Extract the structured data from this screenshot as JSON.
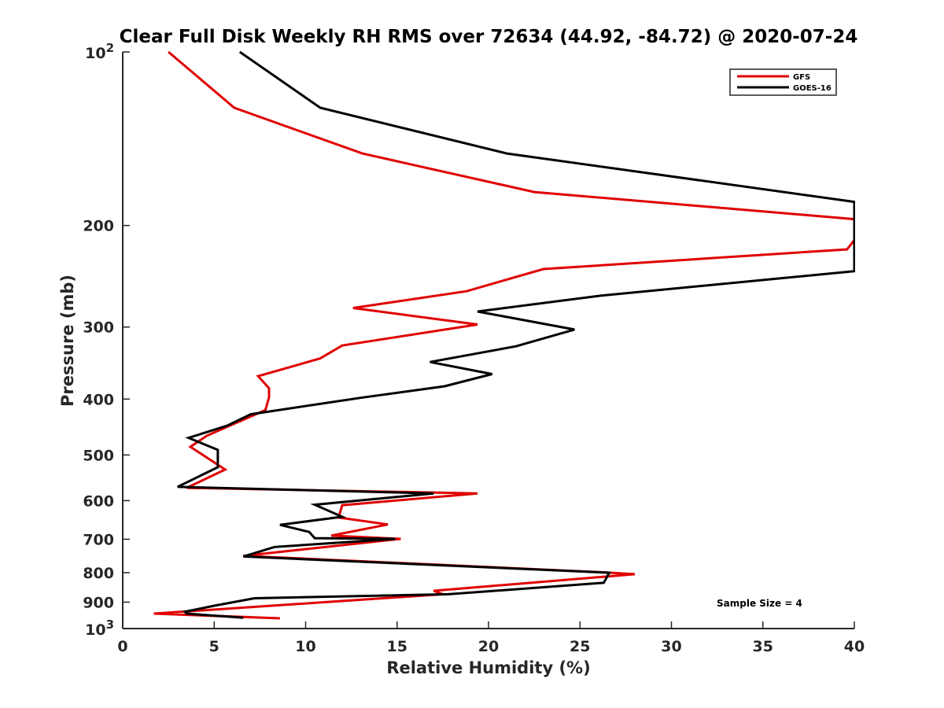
{
  "chart_data": {
    "type": "line",
    "title": "Clear Full Disk Weekly RH RMS over 72634 (44.92, -84.72) @ 2020-07-24",
    "xlabel": "Relative Humidity (%)",
    "ylabel": "Pressure (mb)",
    "xlim": [
      0,
      40
    ],
    "ylim": [
      100,
      1000
    ],
    "yscale": "log",
    "yreversed": false,
    "xticks": [
      {
        "value": 0,
        "label": "0"
      },
      {
        "value": 5,
        "label": "5"
      },
      {
        "value": 10,
        "label": "10"
      },
      {
        "value": 15,
        "label": "15"
      },
      {
        "value": 20,
        "label": "20"
      },
      {
        "value": 25,
        "label": "25"
      },
      {
        "value": 30,
        "label": "30"
      },
      {
        "value": 35,
        "label": "35"
      },
      {
        "value": 40,
        "label": "40"
      }
    ],
    "yticks": [
      {
        "value": 100,
        "base": "10",
        "exp": "2"
      },
      {
        "value": 200,
        "label": "200"
      },
      {
        "value": 300,
        "label": "300"
      },
      {
        "value": 400,
        "label": "400"
      },
      {
        "value": 500,
        "label": "500"
      },
      {
        "value": 600,
        "label": "600"
      },
      {
        "value": 700,
        "label": "700"
      },
      {
        "value": 800,
        "label": "800"
      },
      {
        "value": 900,
        "label": "900"
      },
      {
        "value": 1000,
        "base": "10",
        "exp": "3"
      }
    ],
    "legend": {
      "position": "top-right"
    },
    "annotation": "Sample Size = 4",
    "series": [
      {
        "name": "GFS",
        "color": "#e00000",
        "points": [
          [
            2.5,
            100
          ],
          [
            6.1,
            125
          ],
          [
            13.1,
            150
          ],
          [
            22.5,
            175
          ],
          [
            40.0,
            195
          ],
          [
            40.0,
            212
          ],
          [
            39.6,
            220
          ],
          [
            23.0,
            238
          ],
          [
            18.8,
            260
          ],
          [
            12.6,
            278
          ],
          [
            19.4,
            297
          ],
          [
            12.0,
            323
          ],
          [
            10.8,
            340
          ],
          [
            7.4,
            365
          ],
          [
            8.0,
            383
          ],
          [
            8.0,
            397
          ],
          [
            7.8,
            418
          ],
          [
            4.6,
            463
          ],
          [
            3.7,
            484
          ],
          [
            5.6,
            530
          ],
          [
            3.5,
            570
          ],
          [
            19.4,
            583
          ],
          [
            12.0,
            611
          ],
          [
            11.8,
            642
          ],
          [
            14.5,
            660
          ],
          [
            11.4,
            690
          ],
          [
            15.2,
            699
          ],
          [
            6.6,
            748
          ],
          [
            26.0,
            798
          ],
          [
            28.0,
            805
          ],
          [
            17.0,
            860
          ],
          [
            17.5,
            872
          ],
          [
            1.7,
            942
          ],
          [
            8.6,
            960
          ]
        ]
      },
      {
        "name": "GOES-16",
        "color": "#000000",
        "points": [
          [
            6.4,
            100
          ],
          [
            10.8,
            125
          ],
          [
            21.0,
            150
          ],
          [
            40.0,
            182
          ],
          [
            40.0,
            240
          ],
          [
            26.0,
            265
          ],
          [
            19.4,
            282
          ],
          [
            24.7,
            303
          ],
          [
            21.5,
            324
          ],
          [
            16.8,
            345
          ],
          [
            20.2,
            362
          ],
          [
            17.6,
            380
          ],
          [
            13.0,
            398
          ],
          [
            7.0,
            425
          ],
          [
            5.7,
            445
          ],
          [
            3.6,
            467
          ],
          [
            5.2,
            490
          ],
          [
            5.2,
            525
          ],
          [
            3.0,
            568
          ],
          [
            17.0,
            583
          ],
          [
            10.5,
            610
          ],
          [
            12.0,
            640
          ],
          [
            8.6,
            661
          ],
          [
            10.2,
            680
          ],
          [
            10.5,
            697
          ],
          [
            14.9,
            699
          ],
          [
            8.3,
            722
          ],
          [
            6.6,
            750
          ],
          [
            26.6,
            800
          ],
          [
            26.3,
            833
          ],
          [
            17.8,
            872
          ],
          [
            7.2,
            886
          ],
          [
            5.0,
            913
          ],
          [
            3.4,
            935
          ],
          [
            3.5,
            942
          ],
          [
            6.6,
            958
          ]
        ]
      }
    ]
  }
}
